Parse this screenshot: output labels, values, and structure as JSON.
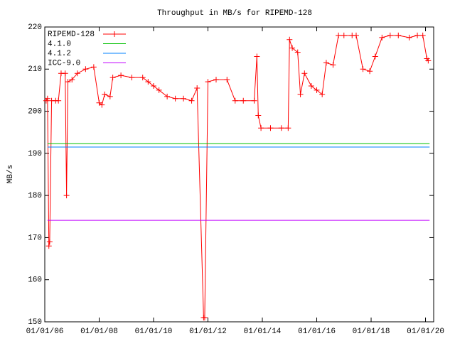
{
  "chart_data": {
    "type": "line",
    "title": "Throughput in MB/s for RIPEMD-128",
    "y_label": "MB/s",
    "xlim": [
      2006,
      2020.3
    ],
    "xticks": [
      {
        "value": 2006,
        "label": "01/01/06"
      },
      {
        "value": 2008,
        "label": "01/01/08"
      },
      {
        "value": 2010,
        "label": "01/01/10"
      },
      {
        "value": 2012,
        "label": "01/01/12"
      },
      {
        "value": 2014,
        "label": "01/01/14"
      },
      {
        "value": 2016,
        "label": "01/01/16"
      },
      {
        "value": 2018,
        "label": "01/01/18"
      },
      {
        "value": 2020,
        "label": "01/01/20"
      }
    ],
    "ylim": [
      150,
      220
    ],
    "yticks": [
      150,
      160,
      170,
      180,
      190,
      200,
      210,
      220
    ],
    "legend": "top-left",
    "series": [
      {
        "name": "RIPEMD-128",
        "color": "#ff0000",
        "points": true,
        "x": [
          2006.05,
          2006.1,
          2006.15,
          2006.18,
          2006.25,
          2006.4,
          2006.5,
          2006.6,
          2006.75,
          2006.8,
          2006.85,
          2007.0,
          2007.2,
          2007.5,
          2007.8,
          2008.0,
          2008.1,
          2008.2,
          2008.4,
          2008.5,
          2008.8,
          2009.2,
          2009.6,
          2009.8,
          2010.0,
          2010.2,
          2010.5,
          2010.8,
          2011.1,
          2011.4,
          2011.6,
          2011.84,
          2011.88,
          2012.0,
          2012.3,
          2012.7,
          2013.0,
          2013.3,
          2013.7,
          2013.8,
          2013.85,
          2013.95,
          2014.3,
          2014.7,
          2014.95,
          2015.0,
          2015.1,
          2015.3,
          2015.4,
          2015.55,
          2015.8,
          2016.0,
          2016.2,
          2016.35,
          2016.6,
          2016.8,
          2017.0,
          2017.3,
          2017.45,
          2017.7,
          2017.95,
          2018.15,
          2018.4,
          2018.7,
          2019.0,
          2019.4,
          2019.7,
          2019.9,
          2020.05,
          2020.1
        ],
        "values": [
          202.5,
          203,
          168,
          169,
          202.5,
          202.5,
          202.5,
          209,
          209,
          180,
          207,
          207.5,
          209,
          210,
          210.5,
          202,
          201.5,
          204,
          203.5,
          208,
          208.5,
          208,
          208,
          207,
          206,
          205,
          203.5,
          203,
          203,
          202.5,
          205.5,
          151,
          151,
          207,
          207.5,
          207.5,
          202.5,
          202.5,
          202.5,
          213,
          199,
          196,
          196,
          196,
          196,
          217,
          215,
          214,
          204,
          209,
          206,
          205,
          204,
          211.5,
          211,
          218,
          218,
          218,
          218,
          210,
          209.5,
          213,
          217.5,
          218,
          218,
          217.5,
          218,
          218,
          212.5,
          212
        ]
      },
      {
        "name": "4.1.0",
        "color": "#00c000",
        "points": false,
        "x": [
          2006.1,
          2020.15
        ],
        "values": [
          192.3,
          192.3
        ]
      },
      {
        "name": "4.1.2",
        "color": "#0080ff",
        "points": false,
        "x": [
          2006.1,
          2020.15
        ],
        "values": [
          191.5,
          191.5
        ]
      },
      {
        "name": "ICC-9.0",
        "color": "#c000ff",
        "points": false,
        "x": [
          2006.1,
          2020.15
        ],
        "values": [
          174.1,
          174.1
        ]
      }
    ]
  }
}
